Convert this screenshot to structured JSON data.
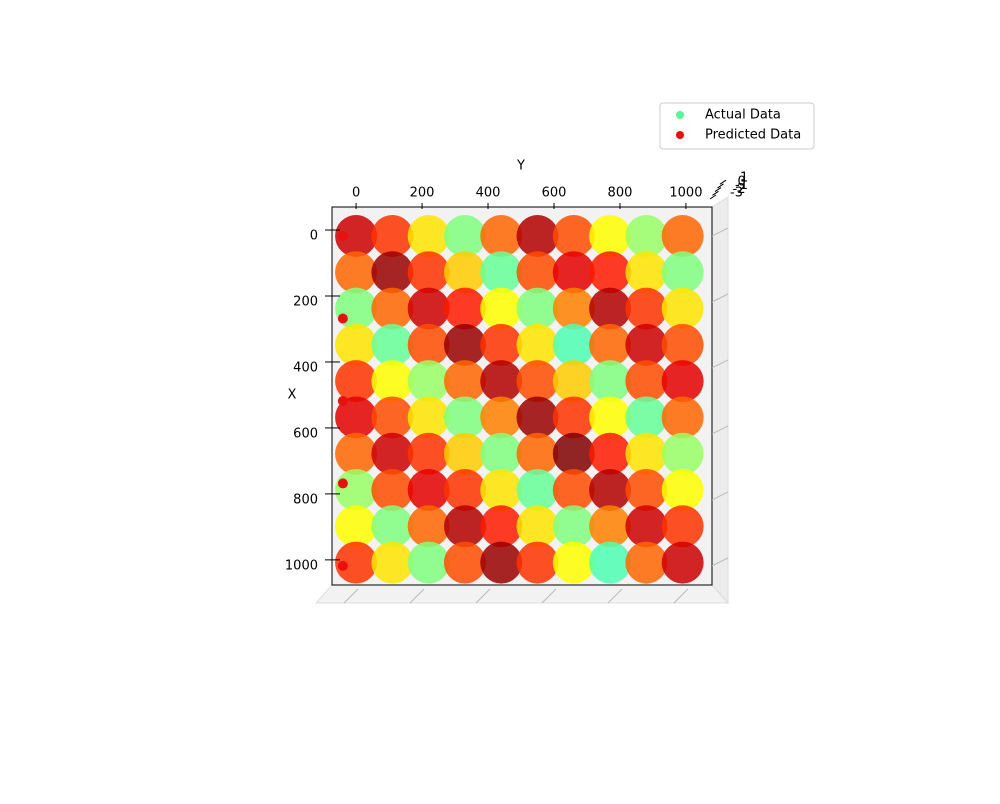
{
  "chart_data": {
    "type": "scatter3d",
    "x_label": "X",
    "y_label": "Y",
    "xlim": [
      -88,
      1058
    ],
    "ylim": [
      -73,
      1079
    ],
    "zlim": [
      -3,
      1
    ],
    "xticks": [
      0,
      200,
      400,
      600,
      800,
      1000
    ],
    "yticks": [
      0,
      200,
      400,
      600,
      800,
      1000
    ],
    "zticks": [
      -3,
      -2,
      -1,
      0,
      1
    ],
    "colormap": "jet",
    "legend": "upper right",
    "series": [
      {
        "name": "Actual Data",
        "color": "#5cf29a",
        "x": [
          0,
          0,
          0,
          0,
          0,
          0,
          0,
          0,
          0,
          0,
          110,
          110,
          110,
          110,
          110,
          110,
          110,
          110,
          110,
          110,
          220,
          220,
          220,
          220,
          220,
          220,
          220,
          220,
          220,
          220,
          330,
          330,
          330,
          330,
          330,
          330,
          330,
          330,
          330,
          330,
          440,
          440,
          440,
          440,
          440,
          440,
          440,
          440,
          440,
          440,
          550,
          550,
          550,
          550,
          550,
          550,
          550,
          550,
          550,
          550,
          660,
          660,
          660,
          660,
          660,
          660,
          660,
          660,
          660,
          660,
          770,
          770,
          770,
          770,
          770,
          770,
          770,
          770,
          770,
          770,
          880,
          880,
          880,
          880,
          880,
          880,
          880,
          880,
          880,
          880,
          990,
          990,
          990,
          990,
          990,
          990,
          990,
          990,
          990,
          990
        ],
        "y": [
          0,
          110,
          220,
          330,
          440,
          550,
          660,
          770,
          880,
          990,
          0,
          110,
          220,
          330,
          440,
          550,
          660,
          770,
          880,
          990,
          0,
          110,
          220,
          330,
          440,
          550,
          660,
          770,
          880,
          990,
          0,
          110,
          220,
          330,
          440,
          550,
          660,
          770,
          880,
          990,
          0,
          110,
          220,
          330,
          440,
          550,
          660,
          770,
          880,
          990,
          0,
          110,
          220,
          330,
          440,
          550,
          660,
          770,
          880,
          990,
          0,
          110,
          220,
          330,
          440,
          550,
          660,
          770,
          880,
          990,
          0,
          110,
          220,
          330,
          440,
          550,
          660,
          770,
          880,
          990,
          0,
          110,
          220,
          330,
          440,
          550,
          660,
          770,
          880,
          990,
          0,
          110,
          220,
          330,
          440,
          550,
          660,
          770,
          880,
          990
        ],
        "z": [
          0.7,
          0.3,
          -0.4,
          -1.0,
          0.1,
          0.8,
          0.2,
          -0.5,
          -0.9,
          0.1,
          0.1,
          0.9,
          0.3,
          -0.3,
          -1.1,
          0.2,
          0.6,
          0.4,
          -0.4,
          -1.0,
          -1.0,
          0.1,
          0.7,
          0.4,
          -0.5,
          -1.0,
          0.0,
          0.8,
          0.3,
          -0.4,
          -0.4,
          -1.1,
          0.2,
          0.9,
          0.3,
          -0.4,
          -1.2,
          0.1,
          0.7,
          0.2,
          0.3,
          -0.5,
          -0.9,
          0.1,
          0.8,
          0.2,
          -0.3,
          -1.0,
          0.2,
          0.6,
          0.6,
          0.2,
          -0.4,
          -1.0,
          0.0,
          0.9,
          0.3,
          -0.5,
          -1.1,
          0.1,
          0.1,
          0.7,
          0.3,
          -0.3,
          -1.0,
          0.1,
          1.0,
          0.4,
          -0.4,
          -0.9,
          -0.9,
          0.2,
          0.6,
          0.3,
          -0.4,
          -1.1,
          0.2,
          0.8,
          0.2,
          -0.5,
          -0.5,
          -1.0,
          0.1,
          0.8,
          0.4,
          -0.4,
          -1.0,
          0.0,
          0.7,
          0.3,
          0.3,
          -0.4,
          -1.0,
          0.2,
          0.9,
          0.3,
          -0.5,
          -1.2,
          0.1,
          0.7
        ]
      },
      {
        "name": "Predicted Data",
        "color": "#e8110f",
        "x": [
          0,
          250,
          500,
          750,
          1000
        ],
        "y": [
          -40,
          -40,
          -40,
          -40,
          -40
        ],
        "z": [
          0,
          0,
          0,
          0,
          0
        ]
      }
    ]
  }
}
